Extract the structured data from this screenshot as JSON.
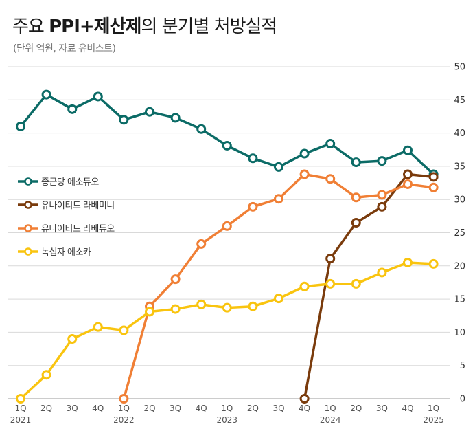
{
  "title": {
    "prefix": "주요 ",
    "bold": "PPI+제산제",
    "suffix": "의 분기별 처방실적"
  },
  "subtitle": "(단위 억원, 자료 유비스트)",
  "colors": {
    "grid": "#d9d9d9",
    "axis": "#999999"
  },
  "chart_data": {
    "type": "line",
    "categories": [
      "1Q",
      "2Q",
      "3Q",
      "4Q",
      "1Q",
      "2Q",
      "3Q",
      "4Q",
      "1Q",
      "2Q",
      "3Q",
      "4Q",
      "1Q",
      "2Q",
      "3Q",
      "4Q",
      "1Q"
    ],
    "year_labels": [
      {
        "index": 0,
        "label": "2021"
      },
      {
        "index": 4,
        "label": "2022"
      },
      {
        "index": 8,
        "label": "2023"
      },
      {
        "index": 12,
        "label": "2024"
      },
      {
        "index": 16,
        "label": "2025"
      }
    ],
    "ylim": [
      0,
      50
    ],
    "yticks": [
      0,
      5,
      10,
      15,
      20,
      25,
      30,
      35,
      40,
      45,
      50
    ],
    "grid": true,
    "legend_position": "left-middle",
    "series": [
      {
        "name": "종근당 에소듀오",
        "color": "#0b6b66",
        "values": [
          41.0,
          45.8,
          43.6,
          45.5,
          42.0,
          43.2,
          42.3,
          40.6,
          38.1,
          36.2,
          34.9,
          36.9,
          38.4,
          35.6,
          35.8,
          37.4,
          33.8
        ]
      },
      {
        "name": "유나이티드 라베미니",
        "color": "#7a3b0c",
        "values": [
          null,
          null,
          null,
          null,
          null,
          null,
          null,
          null,
          null,
          null,
          null,
          0,
          21.1,
          26.5,
          28.9,
          33.8,
          33.4
        ]
      },
      {
        "name": "유나이티드 라베듀오",
        "color": "#f07f35",
        "values": [
          null,
          null,
          null,
          null,
          0,
          13.9,
          18.0,
          23.3,
          26.0,
          28.9,
          30.1,
          33.8,
          33.1,
          30.3,
          30.7,
          32.3,
          31.8
        ]
      },
      {
        "name": "녹십자 에소카",
        "color": "#f9c40f",
        "values": [
          0,
          3.6,
          9.0,
          10.8,
          10.3,
          13.1,
          13.5,
          14.2,
          13.7,
          13.9,
          15.1,
          16.9,
          17.3,
          17.3,
          19.0,
          20.5,
          20.3
        ]
      }
    ]
  }
}
